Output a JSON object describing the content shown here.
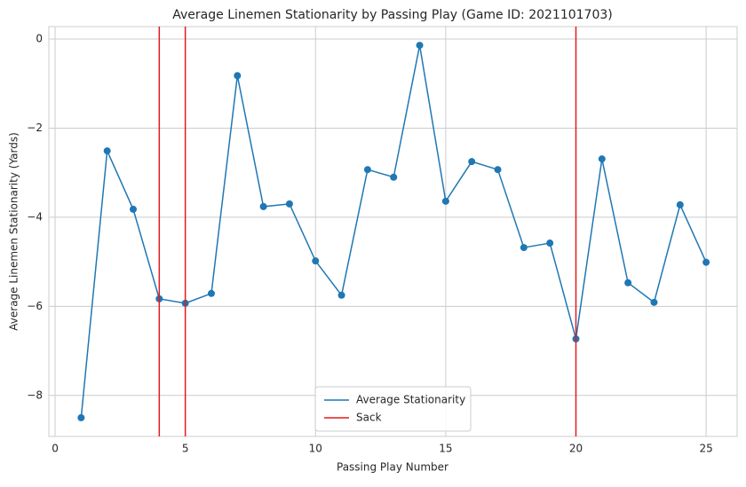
{
  "chart_data": {
    "type": "line",
    "title": "Average Linemen Stationarity by Passing Play (Game ID: 2021101703)",
    "x_label": "Passing Play Number",
    "y_label": "Average Linemen Stationarity (Yards)",
    "x": [
      1,
      2,
      3,
      4,
      5,
      6,
      7,
      8,
      9,
      10,
      11,
      12,
      13,
      14,
      15,
      16,
      17,
      18,
      19,
      20,
      21,
      22,
      23,
      24,
      25
    ],
    "series": [
      {
        "name": "Average Stationarity",
        "color": "#1f77b4",
        "values": [
          -8.5,
          -2.51,
          -3.82,
          -5.83,
          -5.93,
          -5.71,
          -0.82,
          -3.76,
          -3.7,
          -4.98,
          -5.75,
          -2.93,
          -3.1,
          -0.14,
          -3.64,
          -2.75,
          -2.93,
          -4.68,
          -4.58,
          -6.73,
          -2.69,
          -5.47,
          -5.91,
          -3.72,
          -5.01
        ]
      }
    ],
    "vlines": {
      "name": "Sack",
      "color": "#e31a1c",
      "x": [
        4,
        5,
        20
      ]
    },
    "xlim": [
      -0.24,
      26.19
    ],
    "ylim": [
      -8.92,
      0.28
    ],
    "xticks": [
      0,
      5,
      10,
      15,
      20,
      25
    ],
    "yticks": [
      {
        "value": 0,
        "label": "0"
      },
      {
        "value": -2,
        "label": "−2"
      },
      {
        "value": -4,
        "label": "−4"
      },
      {
        "value": -6,
        "label": "−6"
      },
      {
        "value": -8,
        "label": "−8"
      }
    ],
    "grid": true,
    "legend": "lower center"
  }
}
